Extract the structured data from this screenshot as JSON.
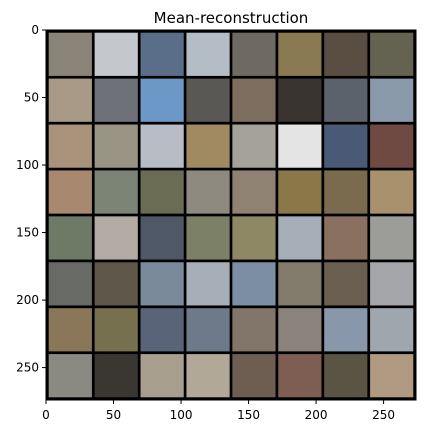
{
  "chart_data": {
    "type": "heatmap",
    "title": "Mean-reconstruction",
    "xlabel": "",
    "ylabel": "",
    "xlim": [
      0,
      274
    ],
    "ylim": [
      274,
      0
    ],
    "grid": false,
    "xticks": [
      0,
      50,
      100,
      150,
      200,
      250
    ],
    "yticks": [
      0,
      50,
      100,
      150,
      200,
      250
    ],
    "tile_grid": {
      "rows": 8,
      "cols": 8,
      "tile_size": 32,
      "gap": 2
    },
    "tile_colors": [
      [
        "#8a8478",
        "#c4c8cc",
        "#5a6e8a",
        "#b4bcc6",
        "#6e6a62",
        "#8a7a52",
        "#5a4e42",
        "#646250"
      ],
      [
        "#a89a86",
        "#6e7278",
        "#6c98c8",
        "#5a5854",
        "#7e6e60",
        "#3a3430",
        "#5c626c",
        "#8a9aaa"
      ],
      [
        "#a8927a",
        "#9a9484",
        "#b8bcc4",
        "#a08a62",
        "#a4a29a",
        "#e4e4e4",
        "#4a5a76",
        "#6e4a42"
      ],
      [
        "#a8886e",
        "#7c8476",
        "#6a6c54",
        "#8e8a80",
        "#908272",
        "#8a7848",
        "#7a6a4e",
        "#a8926e"
      ],
      [
        "#6e7a66",
        "#b4aca4",
        "#4e5866",
        "#7c8066",
        "#8e8864",
        "#a6aeb8",
        "#8a7060",
        "#9c9c98"
      ],
      [
        "#686a66",
        "#5e5648",
        "#7a8a9a",
        "#a8aeb8",
        "#7c8ea4",
        "#827a6a",
        "#6a5e50",
        "#a4a6aa"
      ],
      [
        "#8a7658",
        "#76704e",
        "#5a6478",
        "#6e7a8a",
        "#82766a",
        "#8a847c",
        "#8898aa",
        "#9ea6ae"
      ],
      [
        "#8a8a82",
        "#3a3632",
        "#a89e8e",
        "#b2a898",
        "#6e5e52",
        "#7e5e52",
        "#5a5444",
        "#b09a82"
      ]
    ]
  }
}
